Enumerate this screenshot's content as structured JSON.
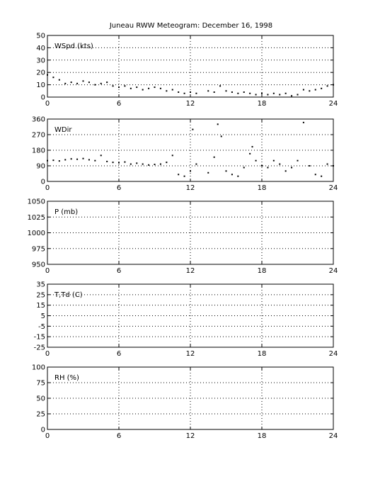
{
  "title": "Juneau RWW Meteogram:  December 16, 1998",
  "chart_data": [
    {
      "type": "scatter",
      "label": "WSpd (kts)",
      "xlim": [
        0,
        24
      ],
      "ylim": [
        0,
        50
      ],
      "xticks": [
        0,
        6,
        12,
        18,
        24
      ],
      "yticks": [
        0,
        10,
        20,
        30,
        40,
        50
      ],
      "grid": true,
      "marker_color": "#000000",
      "x": [
        0,
        0.5,
        1,
        1.5,
        2,
        2.5,
        3,
        3.5,
        4,
        4.5,
        5,
        5.5,
        6,
        6.5,
        7,
        7.5,
        8,
        8.5,
        9,
        9.5,
        10,
        10.5,
        11,
        11.5,
        12,
        12.5,
        13.5,
        14,
        14.5,
        15,
        15.5,
        16,
        16.5,
        17,
        17.5,
        18,
        18.5,
        19,
        19.5,
        20,
        20.5,
        21,
        21.5,
        22,
        22.5,
        23,
        23.5,
        24
      ],
      "y": [
        18,
        16,
        14,
        11,
        12,
        11,
        13,
        12,
        10,
        11,
        12,
        9,
        8,
        9,
        7,
        8,
        6,
        7,
        8,
        7,
        5,
        6,
        4,
        3,
        4,
        3,
        5,
        4,
        9,
        5,
        4,
        3,
        4,
        3,
        2,
        3,
        2,
        3,
        2,
        3,
        1,
        2,
        6,
        5,
        6,
        7,
        9,
        10
      ]
    },
    {
      "type": "scatter",
      "label": "WDir",
      "xlim": [
        0,
        24
      ],
      "ylim": [
        0,
        360
      ],
      "xticks": [
        0,
        6,
        12,
        18,
        24
      ],
      "yticks": [
        0,
        90,
        180,
        270,
        360
      ],
      "grid": true,
      "marker_color": "#000000",
      "x": [
        0,
        0.5,
        1,
        1.5,
        2,
        2.5,
        3,
        3.5,
        4,
        4.5,
        5,
        5.5,
        6,
        6.5,
        7,
        7.5,
        8,
        8.5,
        9,
        9.5,
        10,
        10.5,
        11,
        11.5,
        12,
        12.2,
        12.5,
        13.5,
        14,
        14.3,
        14.6,
        15,
        15.5,
        16,
        16.5,
        17,
        17.2,
        17.5,
        18,
        18.5,
        19,
        19.5,
        20,
        20.5,
        21,
        21.5,
        22,
        22.5,
        23,
        23.5,
        24
      ],
      "y": [
        120,
        122,
        118,
        125,
        130,
        128,
        132,
        125,
        120,
        150,
        115,
        110,
        108,
        112,
        100,
        105,
        100,
        95,
        98,
        100,
        110,
        150,
        40,
        30,
        60,
        300,
        100,
        50,
        140,
        330,
        260,
        60,
        40,
        30,
        80,
        160,
        200,
        120,
        90,
        80,
        120,
        100,
        60,
        80,
        120,
        340,
        90,
        40,
        30,
        100,
        90
      ]
    },
    {
      "type": "scatter",
      "label": "P (mb)",
      "xlim": [
        0,
        24
      ],
      "ylim": [
        950,
        1050
      ],
      "xticks": [
        0,
        6,
        12,
        18,
        24
      ],
      "yticks": [
        950,
        975,
        1000,
        1025,
        1050
      ],
      "grid": true,
      "x": [],
      "y": []
    },
    {
      "type": "scatter",
      "label": "T,Td (C)",
      "xlim": [
        0,
        24
      ],
      "ylim": [
        -25,
        35
      ],
      "xticks": [
        0,
        6,
        12,
        18,
        24
      ],
      "yticks": [
        -25,
        -15,
        -5,
        5,
        15,
        25,
        35
      ],
      "tick_labels": [
        "-25",
        "-15",
        "-5",
        "5",
        "15",
        "25",
        "35"
      ],
      "grid": true,
      "x": [],
      "y": []
    },
    {
      "type": "scatter",
      "label": "RH (%)",
      "xlim": [
        0,
        24
      ],
      "ylim": [
        0,
        100
      ],
      "xticks": [
        0,
        6,
        12,
        18,
        24
      ],
      "yticks": [
        0,
        25,
        50,
        75,
        100
      ],
      "grid": true,
      "x": [],
      "y": []
    }
  ]
}
